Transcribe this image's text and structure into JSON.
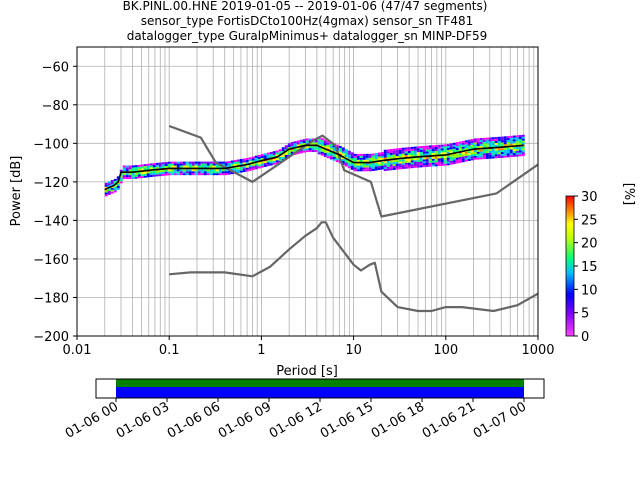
{
  "title": {
    "line1": "BK.PINL.00.HNE   2019-01-05 -- 2019-01-06  (47/47 segments)",
    "line2": "sensor_type FortisDCto100Hz(4gmax) sensor_sn TF481",
    "line3": "datalogger_type GuralpMinimus+ datalogger_sn MINP-DF59"
  },
  "colors": {
    "model_curves": "#666666",
    "median": "#000000",
    "grid": "#b0b0b0",
    "timeline_green": "#008000",
    "timeline_blue": "#0000ff"
  },
  "chart_data": [
    {
      "type": "heatmap",
      "xlabel": "Period [s]",
      "ylabel": "Power [dB]",
      "xscale": "log",
      "xlim": [
        0.01,
        1000
      ],
      "ylim": [
        -200,
        -50
      ],
      "x_ticks": [
        "0.01",
        "0.1",
        "1",
        "10",
        "100",
        "1000"
      ],
      "y_ticks": [
        "−60",
        "−80",
        "−100",
        "−120",
        "−140",
        "−160",
        "−180",
        "−200"
      ],
      "grid": true,
      "colorbar": {
        "label": "[%]",
        "ticks": [
          "0",
          "5",
          "10",
          "15",
          "20",
          "25",
          "30"
        ],
        "range": [
          0,
          30
        ]
      },
      "series": [
        {
          "name": "",
          "role": "low-noise model",
          "x": [
            0.1,
            0.17,
            0.4,
            0.8,
            1.25,
            2.0,
            3.0,
            4.0,
            4.5,
            5.0,
            6.0,
            10.0,
            12.0,
            15.0,
            17.0,
            20.0,
            30.0,
            50.0,
            70.0,
            100.0,
            150.0,
            330.0,
            600.0,
            1000.0
          ],
          "y": [
            -168,
            -167,
            -167,
            -169,
            -164,
            -155,
            -148,
            -144,
            -141,
            -141,
            -149,
            -163,
            -166,
            -163,
            -162,
            -177,
            -185,
            -187,
            -187,
            -185,
            -185,
            -187,
            -184,
            -178
          ]
        },
        {
          "name": "",
          "role": "high-noise model",
          "x": [
            0.1,
            0.22,
            0.32,
            0.8,
            3.8,
            4.6,
            6.3,
            7.9,
            15.4,
            20.0,
            354.8,
            1000.0
          ],
          "y": [
            -91,
            -97,
            -110,
            -120,
            -98,
            -96,
            -101,
            -114,
            -120,
            -138,
            -126,
            -111
          ]
        },
        {
          "name": "",
          "role": "median PSD",
          "x": [
            0.02,
            0.022,
            0.025,
            0.028,
            0.03,
            0.04,
            0.06,
            0.1,
            0.2,
            0.4,
            0.7,
            1.0,
            1.5,
            2.0,
            3.0,
            4.0,
            5.0,
            7.0,
            10.0,
            15.0,
            20.0,
            30.0,
            50.0,
            100.0,
            200.0,
            400.0,
            700.0
          ],
          "y": [
            -124,
            -123,
            -122,
            -120,
            -115,
            -115,
            -114,
            -113,
            -113,
            -113,
            -111,
            -109,
            -107,
            -103,
            -101,
            -101,
            -103,
            -106,
            -110,
            -110,
            -109,
            -108,
            -107,
            -106,
            -103,
            -102,
            -101
          ]
        }
      ]
    },
    {
      "type": "bar",
      "role": "data coverage timeline",
      "x_ticks": [
        "01-06 00",
        "01-06 03",
        "01-06 06",
        "01-06 09",
        "01-06 12",
        "01-06 15",
        "01-06 18",
        "01-06 21",
        "01-07 00"
      ],
      "series": [
        {
          "name": "",
          "start": "01-06 00",
          "end": "01-07 00",
          "color": "#008000"
        },
        {
          "name": "",
          "start": "01-06 00",
          "end": "01-07 00",
          "color": "#0000ff"
        }
      ]
    }
  ]
}
